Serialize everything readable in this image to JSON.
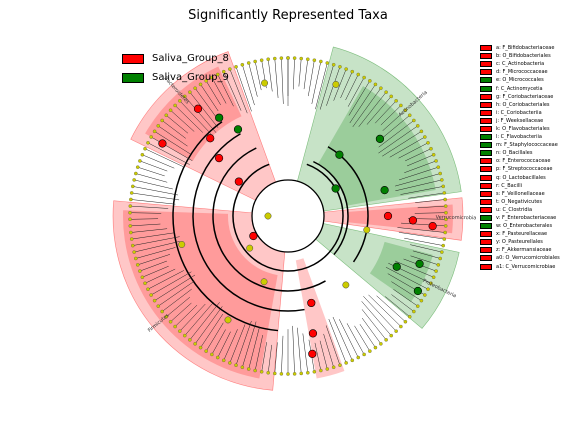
{
  "title": "Significantly Represented Taxa",
  "groups": [
    {
      "name": "Saliva_Group_8",
      "color": "#ff0000"
    },
    {
      "name": "Saliva_Group_9",
      "color": "#008000"
    }
  ],
  "taxa": [
    {
      "label": "a: F_Bifidobacteriaceae",
      "group": 0
    },
    {
      "label": "b: O_Bifidobacteriales",
      "group": 0
    },
    {
      "label": "c: C_Actinobacteria",
      "group": 0
    },
    {
      "label": "d: F_Micrococcaceae",
      "group": 0
    },
    {
      "label": "e: O_Micrococcales",
      "group": 1
    },
    {
      "label": "f: C_Actinomycetia",
      "group": 1
    },
    {
      "label": "g: F_Coriobacteriaceae",
      "group": 0
    },
    {
      "label": "h: O_Coriobacteriales",
      "group": 0
    },
    {
      "label": "i: C_Coriobacteriia",
      "group": 0
    },
    {
      "label": "j: F_Weeksellaceae",
      "group": 0
    },
    {
      "label": "k: O_Flavobacteriales",
      "group": 0
    },
    {
      "label": "l: C_Flavobacteriia",
      "group": 1
    },
    {
      "label": "m: F_Staphylococcaceae",
      "group": 1
    },
    {
      "label": "n: O_Bacillales",
      "group": 1
    },
    {
      "label": "o: F_Enterococcaceae",
      "group": 0
    },
    {
      "label": "p: F_Streptococcaceae",
      "group": 0
    },
    {
      "label": "q: O_Lactobacillales",
      "group": 0
    },
    {
      "label": "r: C_Bacilli",
      "group": 0
    },
    {
      "label": "s: F_Veillonellaceae",
      "group": 0
    },
    {
      "label": "t: O_Negativicutes",
      "group": 0
    },
    {
      "label": "u: C_Clostridia",
      "group": 0
    },
    {
      "label": "v: F_Enterobacteriaceae",
      "group": 1
    },
    {
      "label": "w: O_Enterobacterales",
      "group": 1
    },
    {
      "label": "x: F_Pasteurellaceae",
      "group": 0
    },
    {
      "label": "y: O_Pasteurellales",
      "group": 0
    },
    {
      "label": "z: F_Akkermansiaceae",
      "group": 0
    },
    {
      "label": "a0: O_Verrucomicrobiales",
      "group": 0
    },
    {
      "label": "a1: C_Verrucomicrobiae",
      "group": 0
    }
  ],
  "sectors": [
    {
      "label": "Firmicutes",
      "group": 0,
      "start": 185,
      "end": 275
    },
    {
      "label": "Actinobacteria",
      "group": 1,
      "start": 15,
      "end": 82
    },
    {
      "label": "Verrucomicrobia",
      "group": 0,
      "start": 84,
      "end": 98
    },
    {
      "label": "Bacteroidetes",
      "group": 0,
      "start": 296,
      "end": 340
    },
    {
      "label": "Proteobacteria",
      "group": 1,
      "start": 102,
      "end": 130
    }
  ],
  "colors": {
    "group8": "#ff0000",
    "group9": "#008000",
    "node_default": "#cccc00"
  }
}
